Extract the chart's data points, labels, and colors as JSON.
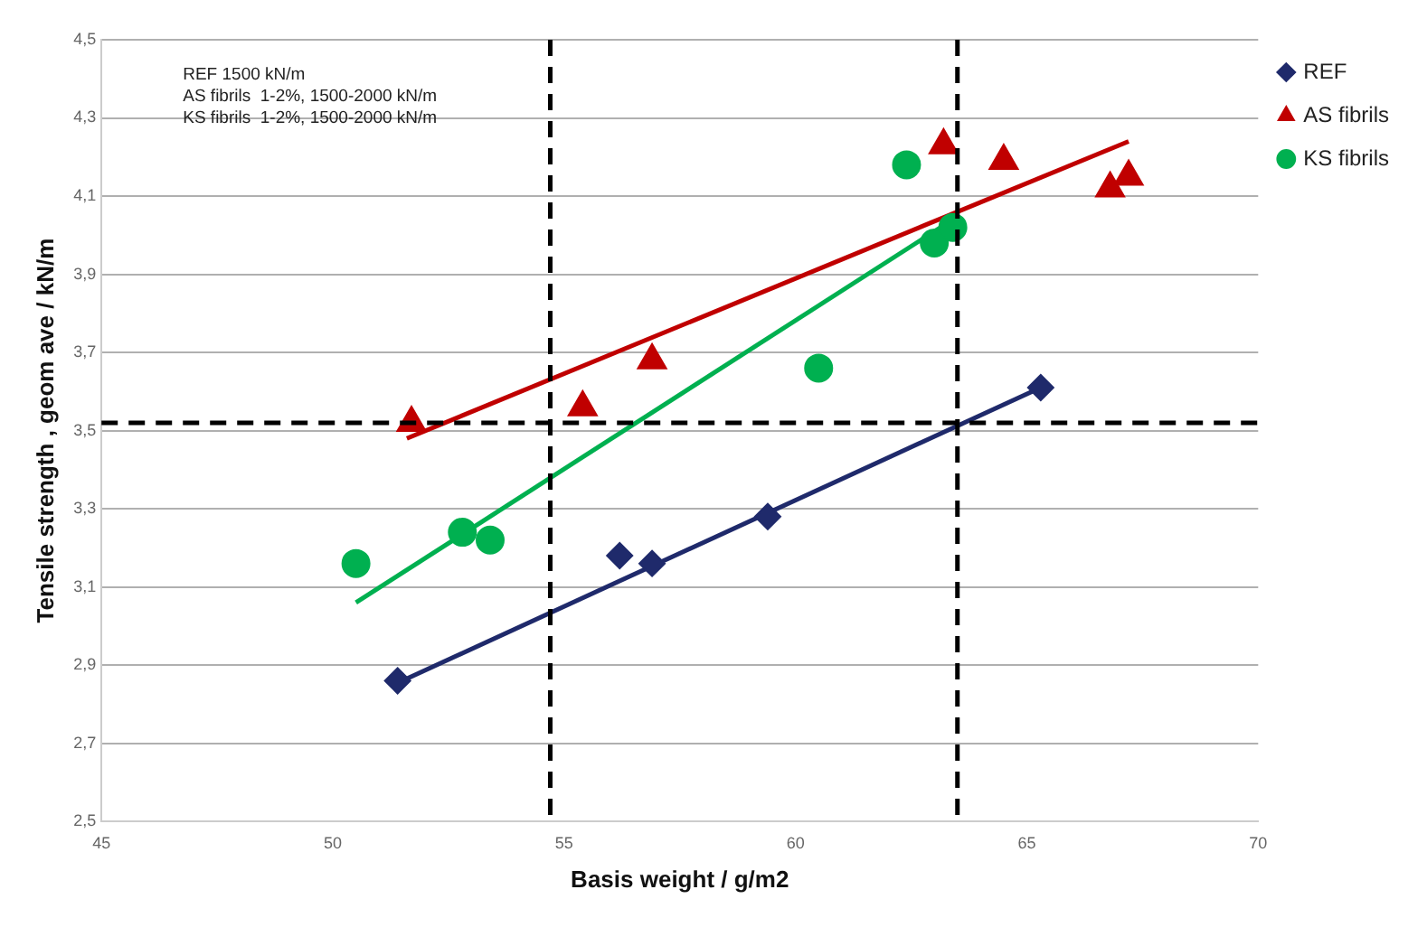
{
  "chart_data": {
    "type": "scatter",
    "xlabel": "Basis weight / g/m2",
    "ylabel": "Tensile strength , geom ave / kN/m",
    "annotations": [
      "REF 1500 kN/m",
      "AS fibrils  1-2%, 1500-2000 kN/m",
      "KS fibrils  1-2%, 1500-2000 kN/m"
    ],
    "xlim": [
      45,
      70
    ],
    "xticks": [
      45,
      50,
      55,
      60,
      65,
      70
    ],
    "ylim": [
      2.5,
      4.5
    ],
    "yticks": [
      {
        "value": 2.5,
        "label": "2,5"
      },
      {
        "value": 2.7,
        "label": "2,7"
      },
      {
        "value": 2.9,
        "label": "2,9"
      },
      {
        "value": 3.1,
        "label": "3,1"
      },
      {
        "value": 3.3,
        "label": "3,3"
      },
      {
        "value": 3.5,
        "label": "3,5"
      },
      {
        "value": 3.7,
        "label": "3,7"
      },
      {
        "value": 3.9,
        "label": "3,9"
      },
      {
        "value": 4.1,
        "label": "4,1"
      },
      {
        "value": 4.3,
        "label": "4,3"
      },
      {
        "value": 4.5,
        "label": "4,5"
      }
    ],
    "grid": "y",
    "legend": "right",
    "series": [
      {
        "name": "REF",
        "marker": "diamond",
        "color": "#1f2a6b",
        "x": [
          51.4,
          56.2,
          56.9,
          59.4,
          65.3
        ],
        "values": [
          2.86,
          3.18,
          3.16,
          3.28,
          3.61
        ]
      },
      {
        "name": "AS fibrils",
        "marker": "triangle",
        "color": "#c00000",
        "x": [
          51.7,
          55.4,
          56.9,
          63.2,
          64.5,
          66.8,
          67.2
        ],
        "values": [
          3.52,
          3.56,
          3.68,
          4.23,
          4.19,
          4.12,
          4.15
        ]
      },
      {
        "name": "KS fibrils",
        "marker": "circle",
        "color": "#00b050",
        "x": [
          50.5,
          52.8,
          53.4,
          60.5,
          62.4,
          63.0,
          63.4
        ],
        "values": [
          3.16,
          3.24,
          3.22,
          3.66,
          4.18,
          3.98,
          4.02
        ]
      },
      {
        "type": "line",
        "marker": "none",
        "color": "#1f2a6b",
        "x": [
          51.5,
          65.3
        ],
        "values": [
          2.86,
          3.61
        ]
      },
      {
        "type": "line",
        "marker": "none",
        "color": "#c00000",
        "x": [
          51.6,
          67.2
        ],
        "values": [
          3.48,
          4.24
        ]
      },
      {
        "type": "line",
        "marker": "none",
        "color": "#00b050",
        "x": [
          50.5,
          63.4
        ],
        "values": [
          3.06,
          4.04
        ]
      }
    ],
    "ref_lines": [
      {
        "axis": "y",
        "value": 3.52,
        "color": "#000000",
        "line_style": "dashed"
      },
      {
        "axis": "x",
        "value": 54.7,
        "color": "#000000",
        "line_style": "dashed"
      },
      {
        "axis": "x",
        "value": 63.5,
        "color": "#000000",
        "line_style": "dashed"
      }
    ]
  }
}
